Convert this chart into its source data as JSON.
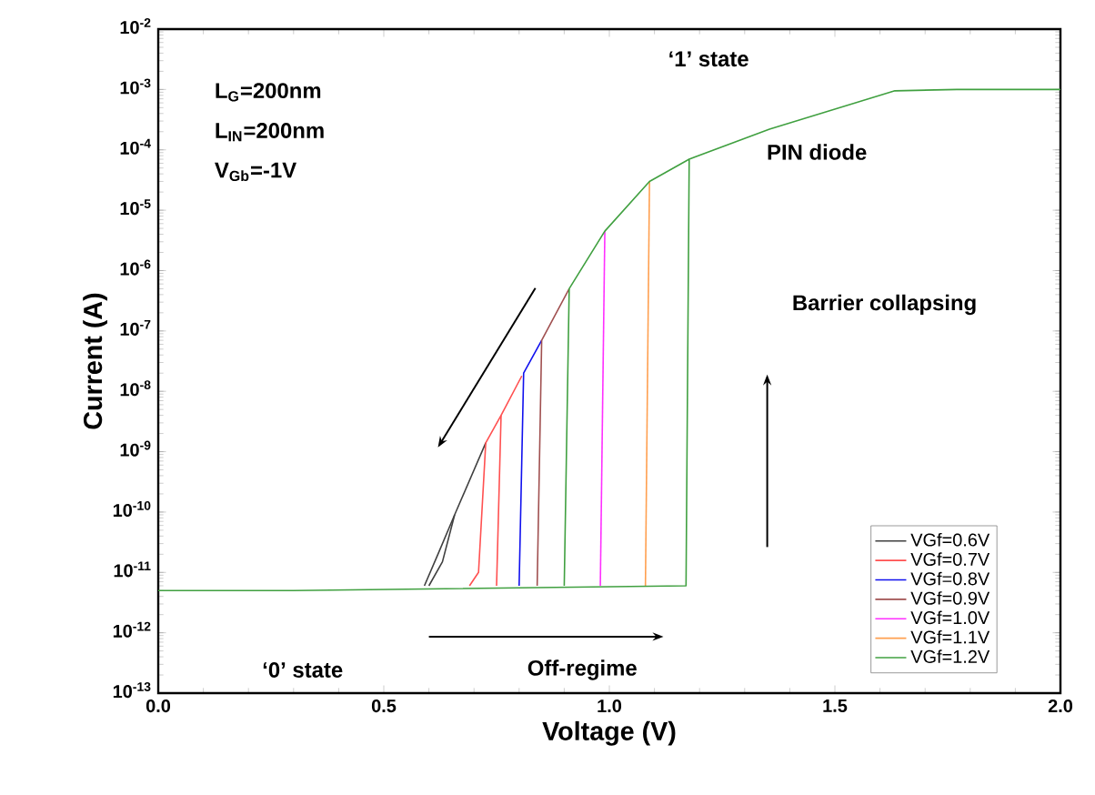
{
  "chart_data": {
    "type": "line",
    "xlabel": "Voltage (V)",
    "ylabel": "Current (A)",
    "log": "y",
    "xlim": [
      0,
      2
    ],
    "ylim": [
      1e-13,
      0.01
    ],
    "xticks": [
      {
        "value": 0,
        "label": "0.0"
      },
      {
        "value": 0.5,
        "label": "0.5"
      },
      {
        "value": 1,
        "label": "1.0"
      },
      {
        "value": 1.5,
        "label": "1.5"
      },
      {
        "value": 2,
        "label": "2.0"
      }
    ],
    "yticks": [
      {
        "value": 1e-13,
        "label": "10$^{-13}$"
      },
      {
        "value": 1e-12,
        "label": "10$^{-12}$"
      },
      {
        "value": 1e-11,
        "label": "10$^{-11}$"
      },
      {
        "value": 1e-10,
        "label": "10$^{-10}$"
      },
      {
        "value": 1e-09,
        "label": "10$^{-9}$"
      },
      {
        "value": 1e-08,
        "label": "10$^{-8}$"
      },
      {
        "value": 1e-07,
        "label": "10$^{-7}$"
      },
      {
        "value": 1e-06,
        "label": "10$^{-6}$"
      },
      {
        "value": 1e-05,
        "label": "10$^{-5}$"
      },
      {
        "value": 0.0001,
        "label": "10$^{-4}$"
      },
      {
        "value": 0.001,
        "label": "10$^{-3}$"
      },
      {
        "value": 0.01,
        "label": "10$^{-2}$"
      }
    ],
    "legend": "bottom right",
    "marker": "none",
    "line_style": "solid",
    "annotations": [
      "L$_{G}$=200nm",
      "L$_{IN}$=200nm",
      "V$_{Gb}$=-1V",
      "‘1’ state",
      "PIN diode",
      "Barrier collapsing",
      "‘0’ state",
      "Off-regime"
    ],
    "series": [
      {
        "name": "VGf=0.6V",
        "color": "#404040",
        "x": [
          0.6,
          0.63,
          0.657,
          0.726
        ],
        "values": [
          6e-12,
          1.5e-11,
          9e-11,
          1.4e-09
        ]
      },
      {
        "color": "#404040",
        "x": [
          0.59,
          0.62,
          0.657
        ],
        "values": [
          6e-12,
          2e-11,
          9e-11
        ]
      },
      {
        "name": "VGf=0.7V",
        "color": "#ff5050",
        "x": [
          0.75,
          0.76,
          0.806
        ],
        "values": [
          6e-12,
          4e-09,
          1.8e-08
        ]
      },
      {
        "color": "#ff5050",
        "x": [
          0.69,
          0.71,
          0.726,
          0.76
        ],
        "values": [
          6e-12,
          1e-11,
          1.4e-09,
          4e-09
        ]
      },
      {
        "name": "VGf=0.8V",
        "color": "#1010ee",
        "x": [
          0.8,
          0.81,
          0.85
        ],
        "values": [
          6e-12,
          2e-08,
          7e-08
        ]
      },
      {
        "name": "VGf=0.9V",
        "color": "#a05050",
        "x": [
          0.84,
          0.85,
          0.911
        ],
        "values": [
          6e-12,
          7e-08,
          5e-07
        ]
      },
      {
        "name": "VGf=1.0V",
        "color": "#ff30ff",
        "x": [
          0.98,
          0.99
        ],
        "values": [
          6e-12,
          4.5e-06
        ]
      },
      {
        "name": "VGf=1.1V",
        "color": "#ffa050",
        "x": [
          1.08,
          1.089
        ],
        "values": [
          6e-12,
          3e-05
        ]
      },
      {
        "name": "VGf=1.2V",
        "color": "#40a040",
        "x": [
          0,
          0.3,
          1.17,
          1.177,
          1.355,
          1.633,
          1.77,
          2.0
        ],
        "values": [
          5e-12,
          5e-12,
          6e-12,
          7e-05,
          0.00022,
          0.00095,
          0.001,
          0.001
        ]
      },
      {
        "color": "#40a040",
        "x": [
          0.9,
          0.911,
          0.99,
          1.089,
          1.177
        ],
        "values": [
          6e-12,
          5e-07,
          4.5e-06,
          3e-05,
          7e-05
        ]
      }
    ]
  }
}
